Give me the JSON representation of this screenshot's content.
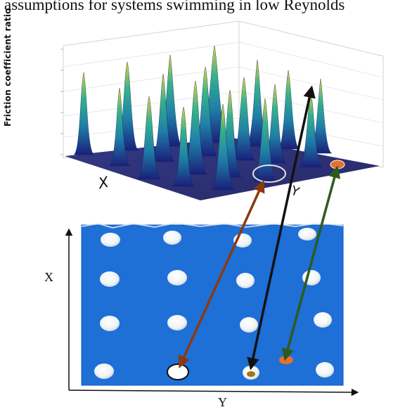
{
  "figure": {
    "caption_fragment": "assumptions for systems swimming in low Reynolds",
    "surface_plot": {
      "z_axis_label": "Friction coefficient ratio",
      "x_axis_label": "X",
      "y_axis_label": "Y"
    },
    "pillar_array": {
      "x_axis_label": "X",
      "y_axis_label": "Y",
      "rows": 4,
      "columns": 4
    },
    "colors": {
      "substrate_blue": "#1e6fd6",
      "arrow_brown": "#8a3a10",
      "arrow_black": "#111111",
      "arrow_green": "#2f5a1e",
      "marker_orange": "#e8702a",
      "highlight_circle": "#e8e8e8"
    }
  }
}
